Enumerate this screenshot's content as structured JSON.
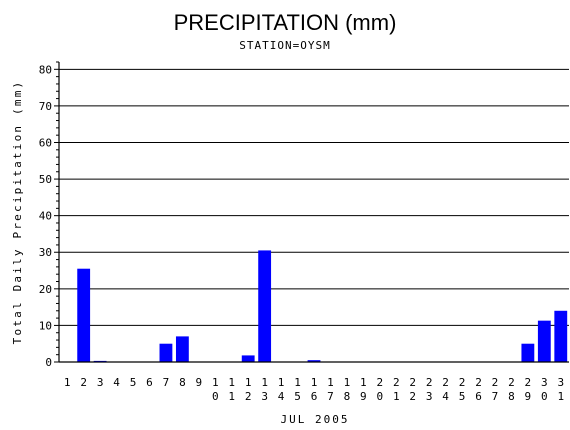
{
  "chart_data": {
    "type": "bar",
    "title": "PRECIPITATION (mm)",
    "subtitle": "STATION=OYSM",
    "xlabel": "JUL 2005",
    "ylabel": "Total Daily Precipitation (mm)",
    "ylim": [
      0,
      82
    ],
    "yticks": [
      0,
      10,
      20,
      30,
      40,
      50,
      60,
      70,
      80
    ],
    "grid": true,
    "bar_color": "#0000ff",
    "categories": [
      "1",
      "2",
      "3",
      "4",
      "5",
      "6",
      "7",
      "8",
      "9",
      "10",
      "11",
      "12",
      "13",
      "14",
      "15",
      "16",
      "17",
      "18",
      "19",
      "20",
      "21",
      "22",
      "23",
      "24",
      "25",
      "26",
      "27",
      "28",
      "29",
      "30",
      "31"
    ],
    "values": [
      0,
      25.5,
      0.3,
      0,
      0,
      0,
      5.0,
      7.0,
      0,
      0,
      0,
      1.8,
      30.5,
      0,
      0,
      0.5,
      0,
      0,
      0,
      0,
      0,
      0,
      0,
      0,
      0,
      0,
      0,
      0,
      5.0,
      11.3,
      14.0
    ]
  }
}
